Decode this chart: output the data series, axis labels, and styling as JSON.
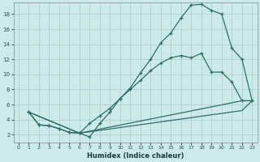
{
  "xlabel": "Humidex (Indice chaleur)",
  "bg_color": "#cceaea",
  "grid_color": "#aacccc",
  "line_color": "#2e6e65",
  "xlim": [
    -0.5,
    23.5
  ],
  "ylim": [
    1.0,
    19.5
  ],
  "xticks": [
    0,
    1,
    2,
    3,
    4,
    5,
    6,
    7,
    8,
    9,
    10,
    11,
    12,
    13,
    14,
    15,
    16,
    17,
    18,
    19,
    20,
    21,
    22,
    23
  ],
  "yticks": [
    2,
    4,
    6,
    8,
    10,
    12,
    14,
    16,
    18
  ],
  "curve1_x": [
    1,
    2,
    3,
    4,
    5,
    6,
    7,
    8,
    9,
    10,
    11,
    12,
    13,
    14,
    15,
    16,
    17,
    18,
    19,
    20,
    21,
    22,
    23
  ],
  "curve1_y": [
    5,
    3.3,
    3.2,
    2.8,
    2.3,
    2.2,
    1.7,
    3.5,
    5.0,
    6.8,
    8.2,
    10.2,
    12.0,
    14.2,
    15.5,
    17.5,
    19.2,
    19.3,
    18.5,
    18.0,
    13.5,
    12.0,
    6.5
  ],
  "curve2_x": [
    1,
    2,
    3,
    4,
    5,
    6,
    7,
    8,
    9,
    10,
    11,
    12,
    13,
    14,
    15,
    16,
    17,
    18,
    19,
    20,
    21,
    22,
    23
  ],
  "curve2_y": [
    5,
    3.3,
    3.2,
    2.8,
    2.3,
    2.2,
    3.5,
    4.5,
    5.5,
    6.8,
    8.0,
    9.2,
    10.5,
    11.5,
    12.2,
    12.5,
    12.2,
    12.8,
    10.3,
    10.3,
    9.0,
    6.5,
    6.5
  ],
  "line3_x": [
    1,
    6,
    22,
    23
  ],
  "line3_y": [
    5,
    2.2,
    6.5,
    6.5
  ],
  "line4_x": [
    1,
    6,
    22,
    23
  ],
  "line4_y": [
    5,
    2.2,
    5.2,
    6.5
  ]
}
